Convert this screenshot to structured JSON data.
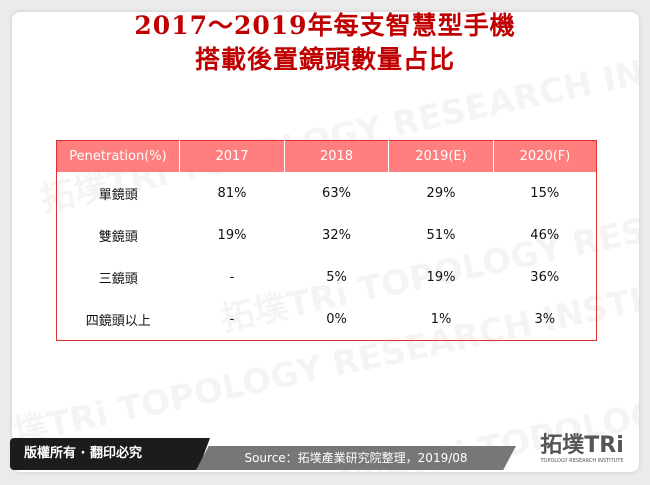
{
  "title": {
    "line1": "2017～2019年每支智慧型手機",
    "line2": "搭載後置鏡頭數量占比"
  },
  "table": {
    "headers": [
      "Penetration(%)",
      "2017",
      "2018",
      "2019(E)",
      "2020(F)"
    ],
    "rows": [
      [
        "單鏡頭",
        "81%",
        "63%",
        "29%",
        "15%"
      ],
      [
        "雙鏡頭",
        "19%",
        "32%",
        "51%",
        "46%"
      ],
      [
        "三鏡頭",
        "-",
        "5%",
        "19%",
        "36%"
      ],
      [
        "四鏡頭以上",
        "-",
        "0%",
        "1%",
        "3%"
      ]
    ]
  },
  "footer": {
    "copyright": "版權所有 · 翻印必究",
    "source": "Source：拓墣產業研究院整理，2019/08"
  },
  "logo": {
    "main": "拓墣TRi",
    "sub": "TOPOLOGY RESEARCH INSTITUTE"
  },
  "watermark": "拓墣TRi TOPOLOGY RESEARCH INSTITUTE",
  "colors": {
    "title": "#c00000",
    "header_bg": "#ff7f7f",
    "border": "#e0302f"
  }
}
